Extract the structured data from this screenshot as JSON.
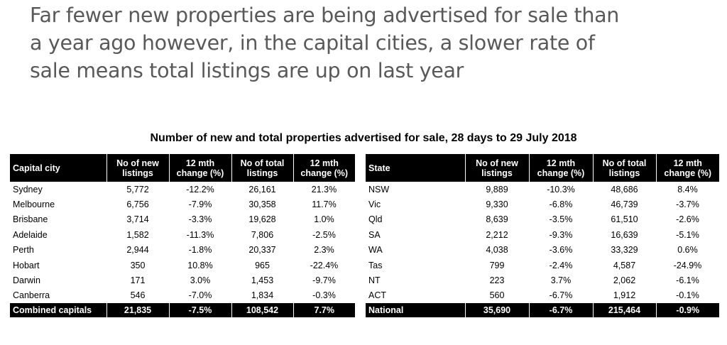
{
  "headline": [
    "Far fewer new properties are being advertised for sale than",
    "a year ago however, in the capital cities, a slower rate of",
    "sale means total listings are up on last year"
  ],
  "table_title": "Number of new and total properties advertised for sale, 28 days to 29 July 2018",
  "capital_table": {
    "headers": [
      "Capital city",
      "No of new listings",
      "12 mth change (%)",
      "No of total listings",
      "12 mth change (%)"
    ],
    "rows": [
      [
        "Sydney",
        "5,772",
        "-12.2%",
        "26,161",
        "21.3%"
      ],
      [
        "Melbourne",
        "6,756",
        "-7.9%",
        "30,358",
        "11.7%"
      ],
      [
        "Brisbane",
        "3,714",
        "-3.3%",
        "19,628",
        "1.0%"
      ],
      [
        "Adelaide",
        "1,582",
        "-11.3%",
        "7,806",
        "-2.5%"
      ],
      [
        "Perth",
        "2,944",
        "-1.8%",
        "20,337",
        "2.3%"
      ],
      [
        "Hobart",
        "350",
        "10.8%",
        "965",
        "-22.4%"
      ],
      [
        "Darwin",
        "171",
        "3.0%",
        "1,453",
        "-9.7%"
      ],
      [
        "Canberra",
        "546",
        "-7.0%",
        "1,834",
        "-0.3%"
      ]
    ],
    "total": [
      "Combined capitals",
      "21,835",
      "-7.5%",
      "108,542",
      "7.7%"
    ]
  },
  "state_table": {
    "headers": [
      "State",
      "No of new listings",
      "12 mth change (%)",
      "No of total listings",
      "12 mth change (%)"
    ],
    "rows": [
      [
        "NSW",
        "9,889",
        "-10.3%",
        "48,686",
        "8.4%"
      ],
      [
        "Vic",
        "9,330",
        "-6.8%",
        "46,739",
        "-3.7%"
      ],
      [
        "Qld",
        "8,639",
        "-3.5%",
        "61,510",
        "-2.6%"
      ],
      [
        "SA",
        "2,212",
        "-9.3%",
        "16,639",
        "-5.1%"
      ],
      [
        "WA",
        "4,038",
        "-3.6%",
        "33,329",
        "0.6%"
      ],
      [
        "Tas",
        "799",
        "-2.4%",
        "4,587",
        "-24.9%"
      ],
      [
        "NT",
        "223",
        "3.7%",
        "2,062",
        "-6.1%"
      ],
      [
        "ACT",
        "560",
        "-6.7%",
        "1,912",
        "-0.1%"
      ]
    ],
    "total": [
      "National",
      "35,690",
      "-6.7%",
      "215,464",
      "-0.9%"
    ]
  }
}
